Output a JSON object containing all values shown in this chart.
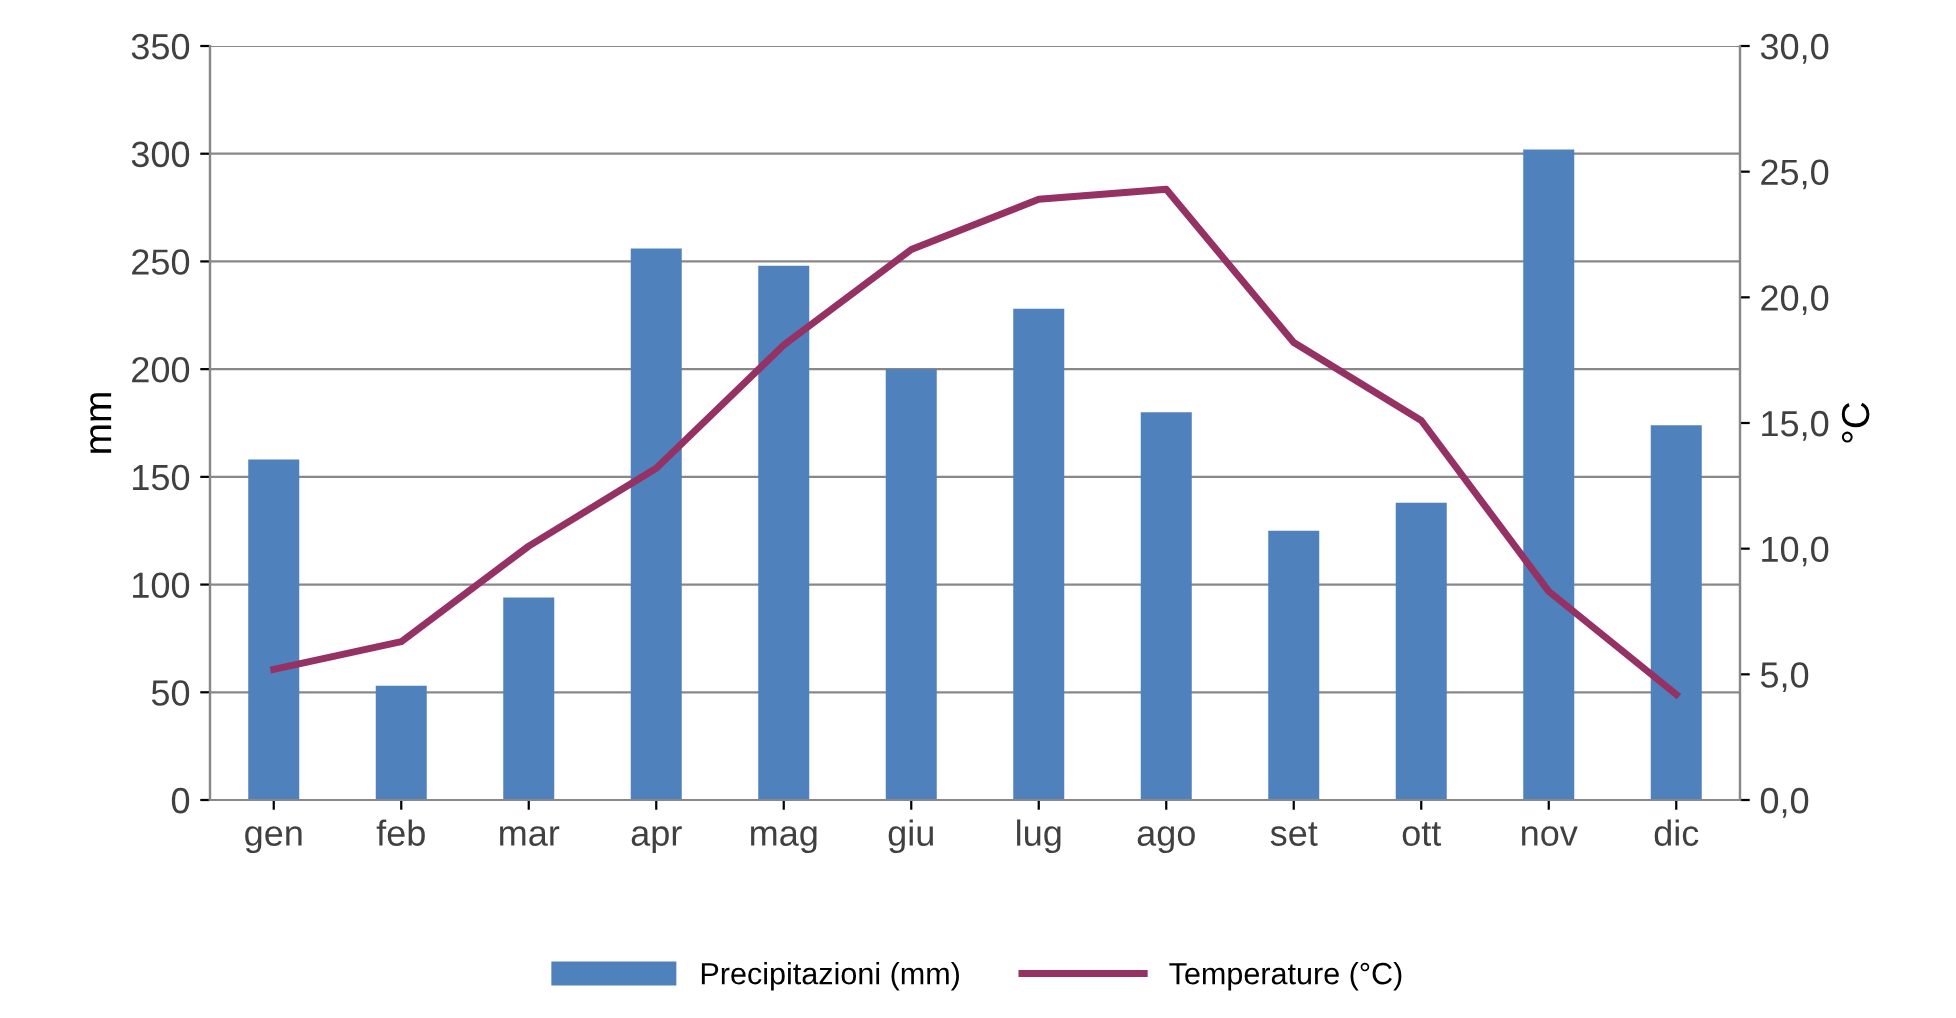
{
  "chart_data": {
    "type": "bar",
    "categories": [
      "gen",
      "feb",
      "mar",
      "apr",
      "mag",
      "giu",
      "lug",
      "ago",
      "set",
      "ott",
      "nov",
      "dic"
    ],
    "series": [
      {
        "name": "Precipitazioni (mm)",
        "color": "#4f81bd",
        "values": [
          158,
          53,
          94,
          256,
          248,
          200,
          228,
          180,
          125,
          138,
          302,
          174
        ]
      },
      {
        "name": "Temperature (°C)",
        "type": "line",
        "axis": "y2",
        "color": "#953163",
        "values": [
          5.2,
          6.3,
          10.1,
          13.2,
          18.1,
          21.9,
          23.9,
          24.3,
          18.2,
          15.1,
          8.3,
          4.2
        ]
      }
    ],
    "ylabel": "mm",
    "y2label": "°C",
    "ylim": [
      0,
      350
    ],
    "yticks": [
      0,
      50,
      100,
      150,
      200,
      250,
      300,
      350
    ],
    "y2lim": [
      0,
      30
    ],
    "y2ticks": [
      {
        "value": 0,
        "label": "0,0"
      },
      {
        "value": 5,
        "label": "5,0"
      },
      {
        "value": 10,
        "label": "10,0"
      },
      {
        "value": 15,
        "label": "15,0"
      },
      {
        "value": 20,
        "label": "20,0"
      },
      {
        "value": 25,
        "label": "25,0"
      },
      {
        "value": 30,
        "label": "30,0"
      }
    ],
    "grid": "y",
    "legend": "bottom",
    "marker": "none",
    "line_style": "solid"
  }
}
